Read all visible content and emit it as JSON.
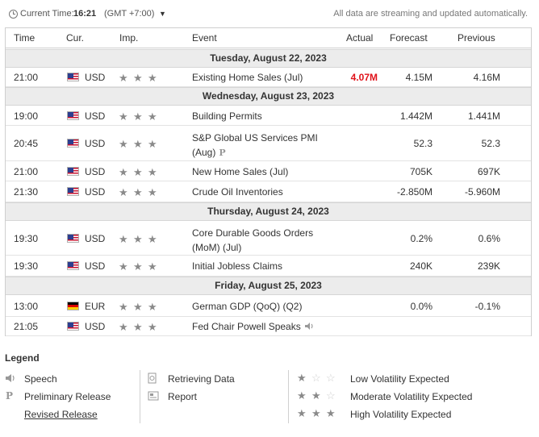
{
  "topbar": {
    "current_time_label": "Current Time:",
    "current_time": "16:21",
    "timezone": "(GMT +7:00)",
    "streaming_note": "All data are streaming and updated automatically."
  },
  "columns": {
    "time": "Time",
    "currency": "Cur.",
    "importance": "Imp.",
    "event": "Event",
    "actual": "Actual",
    "forecast": "Forecast",
    "previous": "Previous"
  },
  "days": [
    {
      "date": "Tuesday, August 22, 2023",
      "events": [
        {
          "time": "21:00",
          "currency": "USD",
          "flag": "us",
          "stars": 3,
          "event": "Existing Home Sales (Jul)",
          "event2": "",
          "actual": "4.07M",
          "actual_color": "#e0121a",
          "forecast": "4.15M",
          "previous": "4.16M"
        }
      ]
    },
    {
      "date": "Wednesday, August 23, 2023",
      "events": [
        {
          "time": "19:00",
          "currency": "USD",
          "flag": "us",
          "stars": 3,
          "event": "Building Permits",
          "event2": "",
          "actual": "",
          "forecast": "1.442M",
          "previous": "1.441M"
        },
        {
          "time": "20:45",
          "currency": "USD",
          "flag": "us",
          "stars": 3,
          "event": "S&P Global US Services PMI",
          "event2": "(Aug)",
          "badge": "P",
          "actual": "",
          "forecast": "52.3",
          "previous": "52.3"
        },
        {
          "time": "21:00",
          "currency": "USD",
          "flag": "us",
          "stars": 3,
          "event": "New Home Sales (Jul)",
          "event2": "",
          "actual": "",
          "forecast": "705K",
          "previous": "697K"
        },
        {
          "time": "21:30",
          "currency": "USD",
          "flag": "us",
          "stars": 3,
          "event": "Crude Oil Inventories",
          "event2": "",
          "actual": "",
          "forecast": "-2.850M",
          "previous": "-5.960M"
        }
      ]
    },
    {
      "date": "Thursday, August 24, 2023",
      "events": [
        {
          "time": "19:30",
          "currency": "USD",
          "flag": "us",
          "stars": 3,
          "event": "Core Durable Goods Orders",
          "event2": "(MoM) (Jul)",
          "actual": "",
          "forecast": "0.2%",
          "previous": "0.6%"
        },
        {
          "time": "19:30",
          "currency": "USD",
          "flag": "us",
          "stars": 3,
          "event": "Initial Jobless Claims",
          "event2": "",
          "actual": "",
          "forecast": "240K",
          "previous": "239K"
        }
      ]
    },
    {
      "date": "Friday, August 25, 2023",
      "events": [
        {
          "time": "13:00",
          "currency": "EUR",
          "flag": "de",
          "stars": 3,
          "event": "German GDP (QoQ) (Q2)",
          "event2": "",
          "actual": "",
          "forecast": "0.0%",
          "previous": "-0.1%"
        },
        {
          "time": "21:05",
          "currency": "USD",
          "flag": "us",
          "stars": 3,
          "event": "Fed Chair Powell Speaks",
          "event2": "",
          "speech": true,
          "actual": "",
          "forecast": "",
          "previous": ""
        }
      ]
    }
  ],
  "legend": {
    "title": "Legend",
    "speech": "Speech",
    "preliminary": "Preliminary Release",
    "revised": "Revised Release",
    "retrieving": "Retrieving Data",
    "report": "Report",
    "low": "Low Volatility Expected",
    "moderate": "Moderate Volatility Expected",
    "high": "High Volatility Expected",
    "preliminary_badge": "P"
  },
  "colors": {
    "actual_worse": "#e0121a",
    "date_row_bg": "#ececec",
    "star_filled": "#8a8a8a",
    "star_empty": "#cfcfcf"
  }
}
